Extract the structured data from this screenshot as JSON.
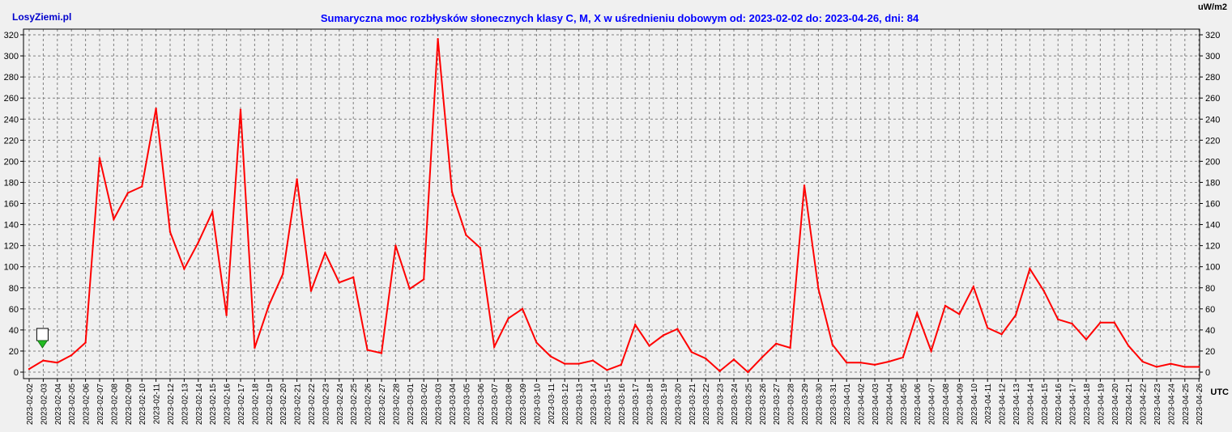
{
  "brand": "LosyZiemi.pl",
  "unit_label": "uW/m2",
  "time_label": "UTC",
  "colors": {
    "background": "#f0f0f0",
    "title": "#0000ff",
    "brand": "#0000cc",
    "line": "#ff0000",
    "grid": "#7f7f7f",
    "marker": "#22bb22"
  },
  "chart_data": {
    "type": "line",
    "title": "Sumaryczna moc rozbłysków słonecznych klasy C, M, X w uśrednieniu dobowym od: 2023-02-02 do: 2023-04-26, dni: 84",
    "xlabel": "",
    "ylabel": "",
    "ylim": [
      0,
      320
    ],
    "ytick_step": 20,
    "grid": true,
    "x": [
      "2023-02-02",
      "2023-02-03",
      "2023-02-04",
      "2023-02-05",
      "2023-02-06",
      "2023-02-07",
      "2023-02-08",
      "2023-02-09",
      "2023-02-10",
      "2023-02-11",
      "2023-02-12",
      "2023-02-13",
      "2023-02-14",
      "2023-02-15",
      "2023-02-16",
      "2023-02-17",
      "2023-02-18",
      "2023-02-19",
      "2023-02-20",
      "2023-02-21",
      "2023-02-22",
      "2023-02-23",
      "2023-02-24",
      "2023-02-25",
      "2023-02-26",
      "2023-02-27",
      "2023-02-28",
      "2023-03-01",
      "2023-03-02",
      "2023-03-03",
      "2023-03-04",
      "2023-03-05",
      "2023-03-06",
      "2023-03-07",
      "2023-03-08",
      "2023-03-09",
      "2023-03-10",
      "2023-03-11",
      "2023-03-12",
      "2023-03-13",
      "2023-03-14",
      "2023-03-15",
      "2023-03-16",
      "2023-03-17",
      "2023-03-18",
      "2023-03-19",
      "2023-03-20",
      "2023-03-21",
      "2023-03-22",
      "2023-03-23",
      "2023-03-24",
      "2023-03-25",
      "2023-03-26",
      "2023-03-27",
      "2023-03-28",
      "2023-03-29",
      "2023-03-30",
      "2023-03-31",
      "2023-04-01",
      "2023-04-02",
      "2023-04-03",
      "2023-04-04",
      "2023-04-05",
      "2023-04-06",
      "2023-04-07",
      "2023-04-08",
      "2023-04-09",
      "2023-04-10",
      "2023-04-11",
      "2023-04-12",
      "2023-04-13",
      "2023-04-14",
      "2023-04-15",
      "2023-04-16",
      "2023-04-17",
      "2023-04-18",
      "2023-04-19",
      "2023-04-20",
      "2023-04-21",
      "2023-04-22",
      "2023-04-23",
      "2023-04-24",
      "2023-04-25",
      "2023-04-26"
    ],
    "series": [
      {
        "values": [
          3,
          11,
          9,
          16,
          28,
          203,
          145,
          170,
          176,
          250,
          133,
          98,
          123,
          152,
          54,
          249,
          23,
          63,
          93,
          183,
          77,
          113,
          85,
          90,
          21,
          18,
          120,
          79,
          88,
          316,
          171,
          130,
          118,
          24,
          51,
          60,
          28,
          15,
          8,
          8,
          11,
          2,
          7,
          45,
          25,
          35,
          41,
          19,
          13,
          1,
          12,
          0,
          14,
          27,
          23,
          177,
          79,
          26,
          9,
          9,
          7,
          10,
          14,
          56,
          20,
          63,
          55,
          81,
          42,
          36,
          54,
          98,
          77,
          50,
          46,
          31,
          47,
          47,
          25,
          10,
          5,
          8,
          5,
          5
        ]
      }
    ],
    "marker": {
      "x": "2023-02-03",
      "label": ""
    }
  }
}
